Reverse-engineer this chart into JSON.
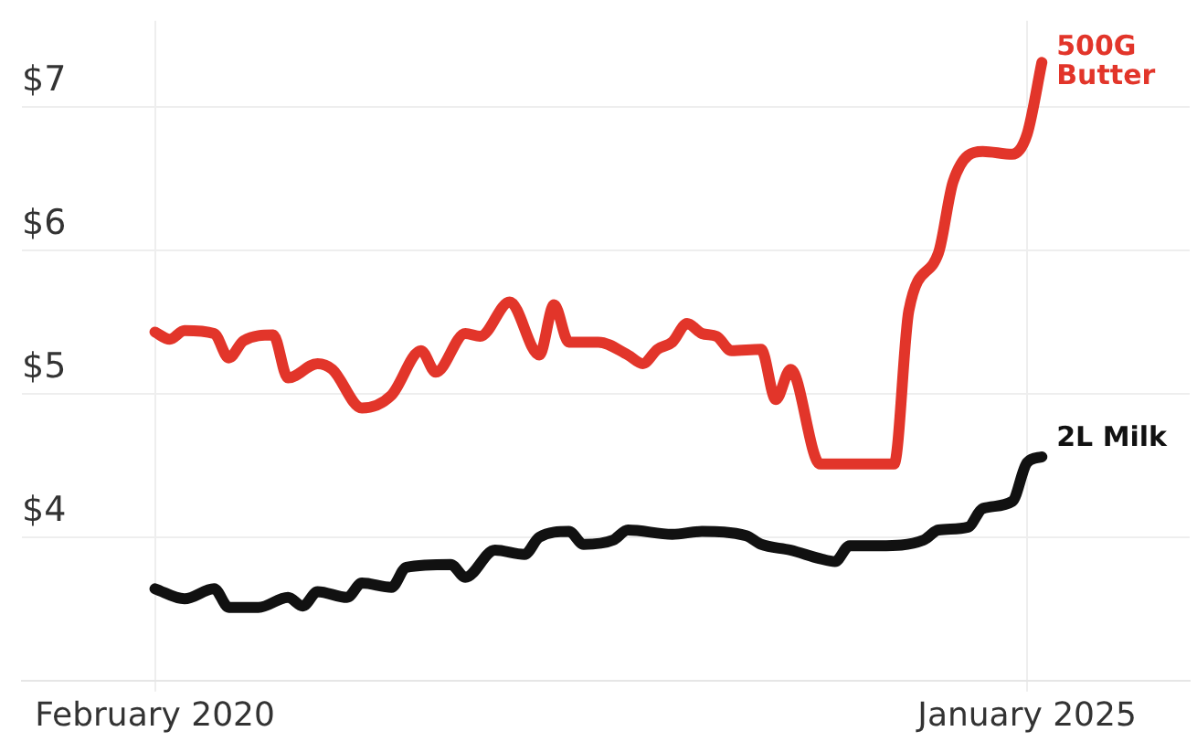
{
  "chart_data": {
    "type": "line",
    "xlim": [
      "2019-05",
      "2025-12"
    ],
    "xticks": [
      {
        "value": "2020-02",
        "label": "February 2020"
      },
      {
        "value": "2025-01",
        "label": "January 2025"
      }
    ],
    "ylim": [
      3,
      7.6
    ],
    "yticks": [
      {
        "value": 4,
        "label": "$4"
      },
      {
        "value": 5,
        "label": "$5"
      },
      {
        "value": 6,
        "label": "$6"
      },
      {
        "value": 7,
        "label": "$7"
      }
    ],
    "grid": true,
    "legend": false,
    "marker": "none",
    "line_style": "solid",
    "series": [
      {
        "name": "500G Butter",
        "color": "#e2352a",
        "x": [
          "2020-02",
          "2020-03",
          "2020-04",
          "2020-06",
          "2020-07",
          "2020-08",
          "2020-10",
          "2020-11",
          "2021-01",
          "2021-02",
          "2021-04",
          "2021-06",
          "2021-08",
          "2021-09",
          "2021-11",
          "2021-12",
          "2022-02",
          "2022-04",
          "2022-05",
          "2022-06",
          "2022-08",
          "2022-10",
          "2022-11",
          "2022-12",
          "2023-01",
          "2023-02",
          "2023-03",
          "2023-04",
          "2023-05",
          "2023-07",
          "2023-08",
          "2023-09",
          "2023-11",
          "2024-04",
          "2024-05",
          "2024-07",
          "2024-08",
          "2024-10",
          "2024-12",
          "2025-01",
          "2025-02"
        ],
        "values": [
          5.43,
          5.38,
          5.44,
          5.42,
          5.25,
          5.37,
          5.41,
          5.11,
          5.21,
          5.17,
          4.9,
          4.99,
          5.3,
          5.15,
          5.42,
          5.4,
          5.64,
          5.27,
          5.62,
          5.36,
          5.36,
          5.27,
          5.21,
          5.31,
          5.36,
          5.49,
          5.42,
          5.4,
          5.3,
          5.31,
          4.96,
          5.17,
          4.51,
          4.51,
          5.58,
          5.98,
          6.48,
          6.69,
          6.67,
          6.81,
          7.31
        ]
      },
      {
        "name": "2L Milk",
        "color": "#111111",
        "x": [
          "2020-02",
          "2020-04",
          "2020-06",
          "2020-07",
          "2020-09",
          "2020-11",
          "2020-12",
          "2021-01",
          "2021-03",
          "2021-04",
          "2021-06",
          "2021-07",
          "2021-10",
          "2021-11",
          "2022-01",
          "2022-03",
          "2022-04",
          "2022-06",
          "2022-07",
          "2022-09",
          "2022-10",
          "2023-01",
          "2023-03",
          "2023-06",
          "2023-07",
          "2023-09",
          "2023-11",
          "2023-12",
          "2024-01",
          "2024-03",
          "2024-06",
          "2024-07",
          "2024-09",
          "2024-10",
          "2024-12",
          "2025-01",
          "2025-02"
        ],
        "values": [
          3.64,
          3.57,
          3.64,
          3.51,
          3.51,
          3.58,
          3.52,
          3.62,
          3.58,
          3.68,
          3.65,
          3.79,
          3.81,
          3.72,
          3.91,
          3.88,
          4.0,
          4.04,
          3.95,
          3.98,
          4.05,
          4.02,
          4.04,
          4.01,
          3.95,
          3.91,
          3.85,
          3.83,
          3.94,
          3.94,
          3.98,
          4.05,
          4.07,
          4.2,
          4.25,
          4.52,
          4.56
        ]
      }
    ]
  }
}
